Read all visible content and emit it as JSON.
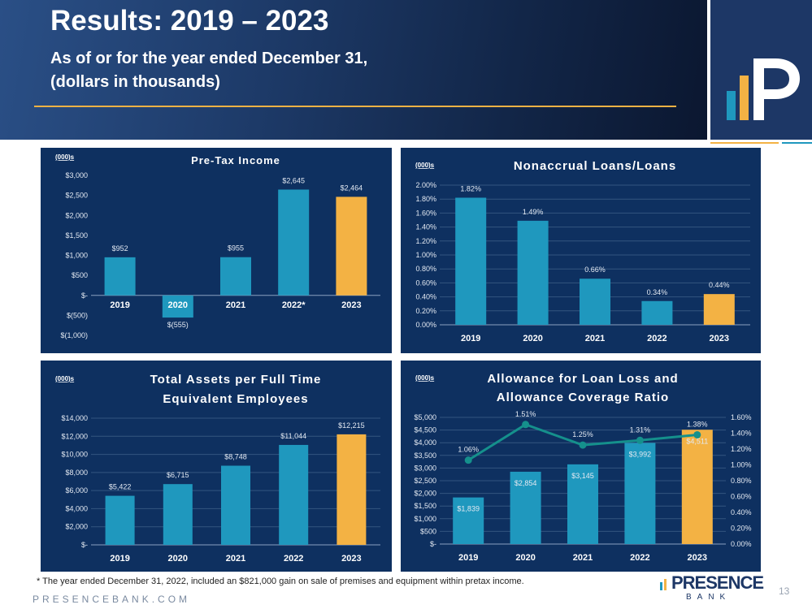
{
  "header": {
    "title": "Results: 2019 – 2023",
    "subtitle_line1": "As of or for the year ended December 31,",
    "subtitle_line2": "(dollars in thousands)"
  },
  "colors": {
    "bar": "#1f98be",
    "highlight": "#f3b244",
    "panel": "#0e3060",
    "line": "#15908c"
  },
  "chart_data": [
    {
      "type": "bar",
      "title": "Pre-Tax Income",
      "unit_label": "(000)s",
      "categories": [
        "2019",
        "2020",
        "2021",
        "2022*",
        "2023"
      ],
      "values": [
        952,
        -555,
        955,
        2645,
        2464
      ],
      "data_labels": [
        "$952",
        "$(555)",
        "$955",
        "$2,645",
        "$2,464"
      ],
      "ylim": [
        -1000,
        3000
      ],
      "yticks": [
        -1000,
        -500,
        0,
        500,
        1000,
        1500,
        2000,
        2500,
        3000
      ],
      "ytick_labels": [
        "$(1,000)",
        "$(500)",
        "$-",
        "$500",
        "$1,000",
        "$1,500",
        "$2,000",
        "$2,500",
        "$3,000"
      ],
      "highlight_index": 4,
      "grid": false
    },
    {
      "type": "bar",
      "title": "Nonaccrual Loans/Loans",
      "unit_label": "(000)s",
      "categories": [
        "2019",
        "2020",
        "2021",
        "2022",
        "2023"
      ],
      "values": [
        1.82,
        1.49,
        0.66,
        0.34,
        0.44
      ],
      "data_labels": [
        "1.82%",
        "1.49%",
        "0.66%",
        "0.34%",
        "0.44%"
      ],
      "ylim": [
        0,
        2.0
      ],
      "yticks": [
        0,
        0.2,
        0.4,
        0.6,
        0.8,
        1.0,
        1.2,
        1.4,
        1.6,
        1.8,
        2.0
      ],
      "ytick_labels": [
        "0.00%",
        "0.20%",
        "0.40%",
        "0.60%",
        "0.80%",
        "1.00%",
        "1.20%",
        "1.40%",
        "1.60%",
        "1.80%",
        "2.00%"
      ],
      "highlight_index": 4,
      "grid": true
    },
    {
      "type": "bar",
      "title_lines": [
        "Total Assets per Full Time",
        "Equivalent Employees"
      ],
      "unit_label": "(000)s",
      "categories": [
        "2019",
        "2020",
        "2021",
        "2022",
        "2023"
      ],
      "values": [
        5422,
        6715,
        8748,
        11044,
        12215
      ],
      "data_labels": [
        "$5,422",
        "$6,715",
        "$8,748",
        "$11,044",
        "$12,215"
      ],
      "ylim": [
        0,
        14000
      ],
      "yticks": [
        0,
        2000,
        4000,
        6000,
        8000,
        10000,
        12000,
        14000
      ],
      "ytick_labels": [
        "$-",
        "$2,000",
        "$4,000",
        "$6,000",
        "$8,000",
        "$10,000",
        "$12,000",
        "$14,000"
      ],
      "highlight_index": 4,
      "grid": true
    },
    {
      "type": "bar+line",
      "title_lines": [
        "Allowance for Loan Loss and",
        "Allowance Coverage Ratio"
      ],
      "unit_label": "(000)s",
      "categories": [
        "2019",
        "2020",
        "2021",
        "2022",
        "2023"
      ],
      "values": [
        1839,
        2854,
        3145,
        3992,
        4511
      ],
      "data_labels": [
        "$1,839",
        "$2,854",
        "$3,145",
        "$3,992",
        "$4,511"
      ],
      "ylim": [
        0,
        5000
      ],
      "yticks": [
        0,
        500,
        1000,
        1500,
        2000,
        2500,
        3000,
        3500,
        4000,
        4500,
        5000
      ],
      "ytick_labels": [
        "$-",
        "$500",
        "$1,000",
        "$1,500",
        "$2,000",
        "$2,500",
        "$3,000",
        "$3,500",
        "$4,000",
        "$4,500",
        "$5,000"
      ],
      "line_values": [
        1.06,
        1.51,
        1.25,
        1.31,
        1.38
      ],
      "line_labels": [
        "1.06%",
        "1.51%",
        "1.25%",
        "1.31%",
        "1.38%"
      ],
      "y2lim": [
        0,
        1.6
      ],
      "y2ticks": [
        0,
        0.2,
        0.4,
        0.6,
        0.8,
        1.0,
        1.2,
        1.4,
        1.6
      ],
      "y2tick_labels": [
        "0.00%",
        "0.20%",
        "0.40%",
        "0.60%",
        "0.80%",
        "1.00%",
        "1.20%",
        "1.40%",
        "1.60%"
      ],
      "highlight_index": 4,
      "grid": true
    }
  ],
  "footer": {
    "footnote": "* The year ended December 31, 2022,  included an $821,000 gain on sale of premises and equipment within pretax income.",
    "website": "PRESENCEBANK.COM",
    "page_number": "13",
    "brand_name": "PRESENCE",
    "brand_sub": "BANK"
  }
}
